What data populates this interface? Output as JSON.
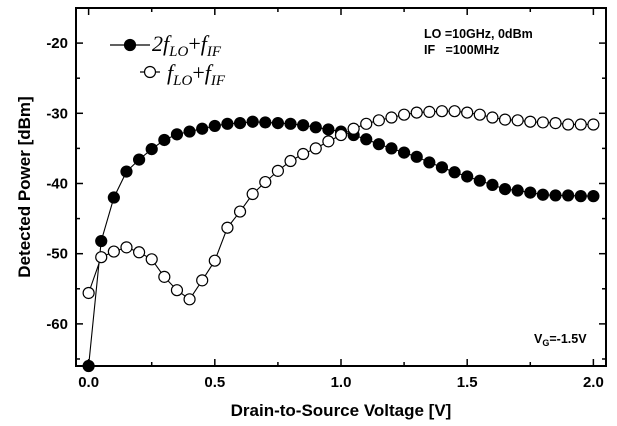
{
  "chart_data": {
    "type": "line",
    "xlabel": "Drain-to-Source Voltage [V]",
    "ylabel": "Detected Power [dBm]",
    "xlim": [
      -0.05,
      2.05
    ],
    "ylim": [
      -66,
      -15
    ],
    "xticks": [
      "0.0",
      "0.5",
      "1.0",
      "1.5",
      "2.0"
    ],
    "yticks": [
      "-20",
      "-30",
      "-40",
      "-50",
      "-60"
    ],
    "annotations": {
      "lo": "LO =10GHz, 0dBm",
      "if": "IF   =100MHz",
      "vg_main": "V",
      "vg_sub": "G",
      "vg_rest": "=-1.5V"
    },
    "legend": [
      {
        "lead": "2",
        "f1": "f",
        "s1": "LO",
        "plus": "+",
        "f2": "f",
        "s2": "IF"
      },
      {
        "lead": "",
        "f1": "f",
        "s1": "LO",
        "plus": "+",
        "f2": "f",
        "s2": "IF"
      }
    ],
    "series": [
      {
        "marker": "filled",
        "x": [
          0.0,
          0.05,
          0.1,
          0.15,
          0.2,
          0.25,
          0.3,
          0.35,
          0.4,
          0.45,
          0.5,
          0.55,
          0.6,
          0.65,
          0.7,
          0.75,
          0.8,
          0.85,
          0.9,
          0.95,
          1.0,
          1.05,
          1.1,
          1.15,
          1.2,
          1.25,
          1.3,
          1.35,
          1.4,
          1.45,
          1.5,
          1.55,
          1.6,
          1.65,
          1.7,
          1.75,
          1.8,
          1.85,
          1.9,
          1.95,
          2.0
        ],
        "y": [
          -66.0,
          -48.2,
          -42.0,
          -38.3,
          -36.6,
          -35.1,
          -33.8,
          -33.0,
          -32.6,
          -32.2,
          -31.8,
          -31.5,
          -31.4,
          -31.2,
          -31.3,
          -31.4,
          -31.5,
          -31.7,
          -32.0,
          -32.3,
          -32.6,
          -33.1,
          -33.7,
          -34.4,
          -35.0,
          -35.6,
          -36.2,
          -37.0,
          -37.7,
          -38.4,
          -39.0,
          -39.6,
          -40.2,
          -40.8,
          -41.0,
          -41.3,
          -41.6,
          -41.7,
          -41.7,
          -41.8,
          -41.8
        ]
      },
      {
        "marker": "open",
        "x": [
          0.0,
          0.05,
          0.1,
          0.15,
          0.2,
          0.25,
          0.3,
          0.35,
          0.4,
          0.45,
          0.5,
          0.55,
          0.6,
          0.65,
          0.7,
          0.75,
          0.8,
          0.85,
          0.9,
          0.95,
          1.0,
          1.05,
          1.1,
          1.15,
          1.2,
          1.25,
          1.3,
          1.35,
          1.4,
          1.45,
          1.5,
          1.55,
          1.6,
          1.65,
          1.7,
          1.75,
          1.8,
          1.85,
          1.9,
          1.95,
          2.0
        ],
        "y": [
          -55.6,
          -50.5,
          -49.7,
          -49.1,
          -49.8,
          -50.8,
          -53.3,
          -55.2,
          -56.5,
          -53.8,
          -51.0,
          -46.3,
          -44.0,
          -41.5,
          -39.8,
          -38.2,
          -36.8,
          -35.8,
          -35.0,
          -34.0,
          -33.1,
          -32.2,
          -31.5,
          -31.0,
          -30.6,
          -30.2,
          -29.9,
          -29.8,
          -29.7,
          -29.7,
          -29.9,
          -30.2,
          -30.6,
          -30.9,
          -31.0,
          -31.2,
          -31.3,
          -31.4,
          -31.6,
          -31.6,
          -31.6
        ]
      }
    ],
    "grid": false
  }
}
